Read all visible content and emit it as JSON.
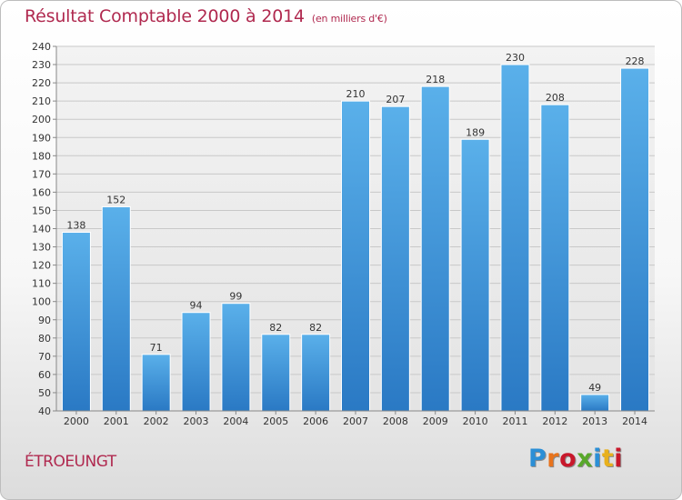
{
  "header": {
    "title": "Résultat Comptable 2000 à 2014",
    "subtitle": "(en milliers d'€)"
  },
  "footer": {
    "place": "ÉTROEUNGT",
    "logo_text": "Proxiti",
    "logo_colors": [
      "#2b8fd6",
      "#e8731c",
      "#c8182b",
      "#58a82a",
      "#2b8fd6",
      "#e8b01c",
      "#c8182b"
    ]
  },
  "chart_data": {
    "type": "bar",
    "title": "Résultat Comptable 2000 à 2014",
    "subtitle": "(en milliers d'€)",
    "categories": [
      "2000",
      "2001",
      "2002",
      "2003",
      "2004",
      "2005",
      "2006",
      "2007",
      "2008",
      "2009",
      "2010",
      "2011",
      "2012",
      "2013",
      "2014"
    ],
    "values": [
      138,
      152,
      71,
      94,
      99,
      82,
      82,
      210,
      207,
      218,
      189,
      230,
      208,
      49,
      228
    ],
    "ylim": [
      40,
      240
    ],
    "yticks": [
      40,
      50,
      60,
      70,
      80,
      90,
      100,
      110,
      120,
      130,
      140,
      150,
      160,
      170,
      180,
      190,
      200,
      210,
      220,
      230,
      240
    ],
    "grid": true,
    "bar_color": "#4a9fe0",
    "bar_color_dark": "#2a79c4"
  }
}
